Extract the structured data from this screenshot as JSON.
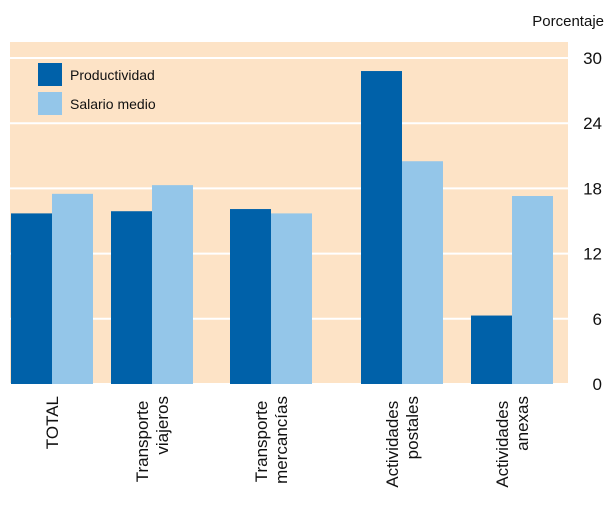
{
  "chart_data": {
    "type": "bar",
    "y_label": "Porcentaje",
    "categories": [
      "TOTAL",
      "Transporte viajeros",
      "Transporte mercancías",
      "Actividades postales",
      "Actividades anexas"
    ],
    "series": [
      {
        "name": "Productividad",
        "color": "#0061a9",
        "values": [
          15.7,
          15.9,
          16.1,
          28.8,
          6.3
        ]
      },
      {
        "name": "Salario medio",
        "color": "#94c6e9",
        "values": [
          17.5,
          18.3,
          15.7,
          20.5,
          17.3
        ]
      }
    ],
    "ylim": [
      0,
      30
    ],
    "yticks": [
      0,
      6,
      12,
      18,
      24,
      30
    ],
    "grid": true,
    "legend": "upper left",
    "background": "#fde3c6"
  }
}
